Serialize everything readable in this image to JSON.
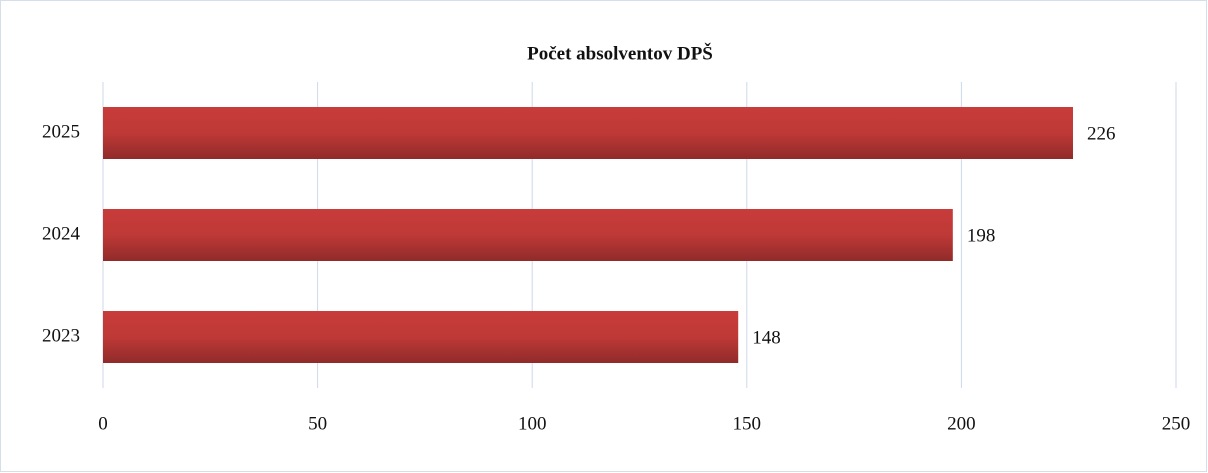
{
  "chart_data": {
    "type": "barh",
    "title": "Počet absolventov DPŠ",
    "categories": [
      "2023",
      "2024",
      "2025"
    ],
    "values": [
      148,
      198,
      226
    ],
    "color": "#c83c3a",
    "xlim": [
      0,
      250
    ],
    "xticks": [
      0,
      50,
      100,
      150,
      200,
      250
    ],
    "grid": true
  }
}
